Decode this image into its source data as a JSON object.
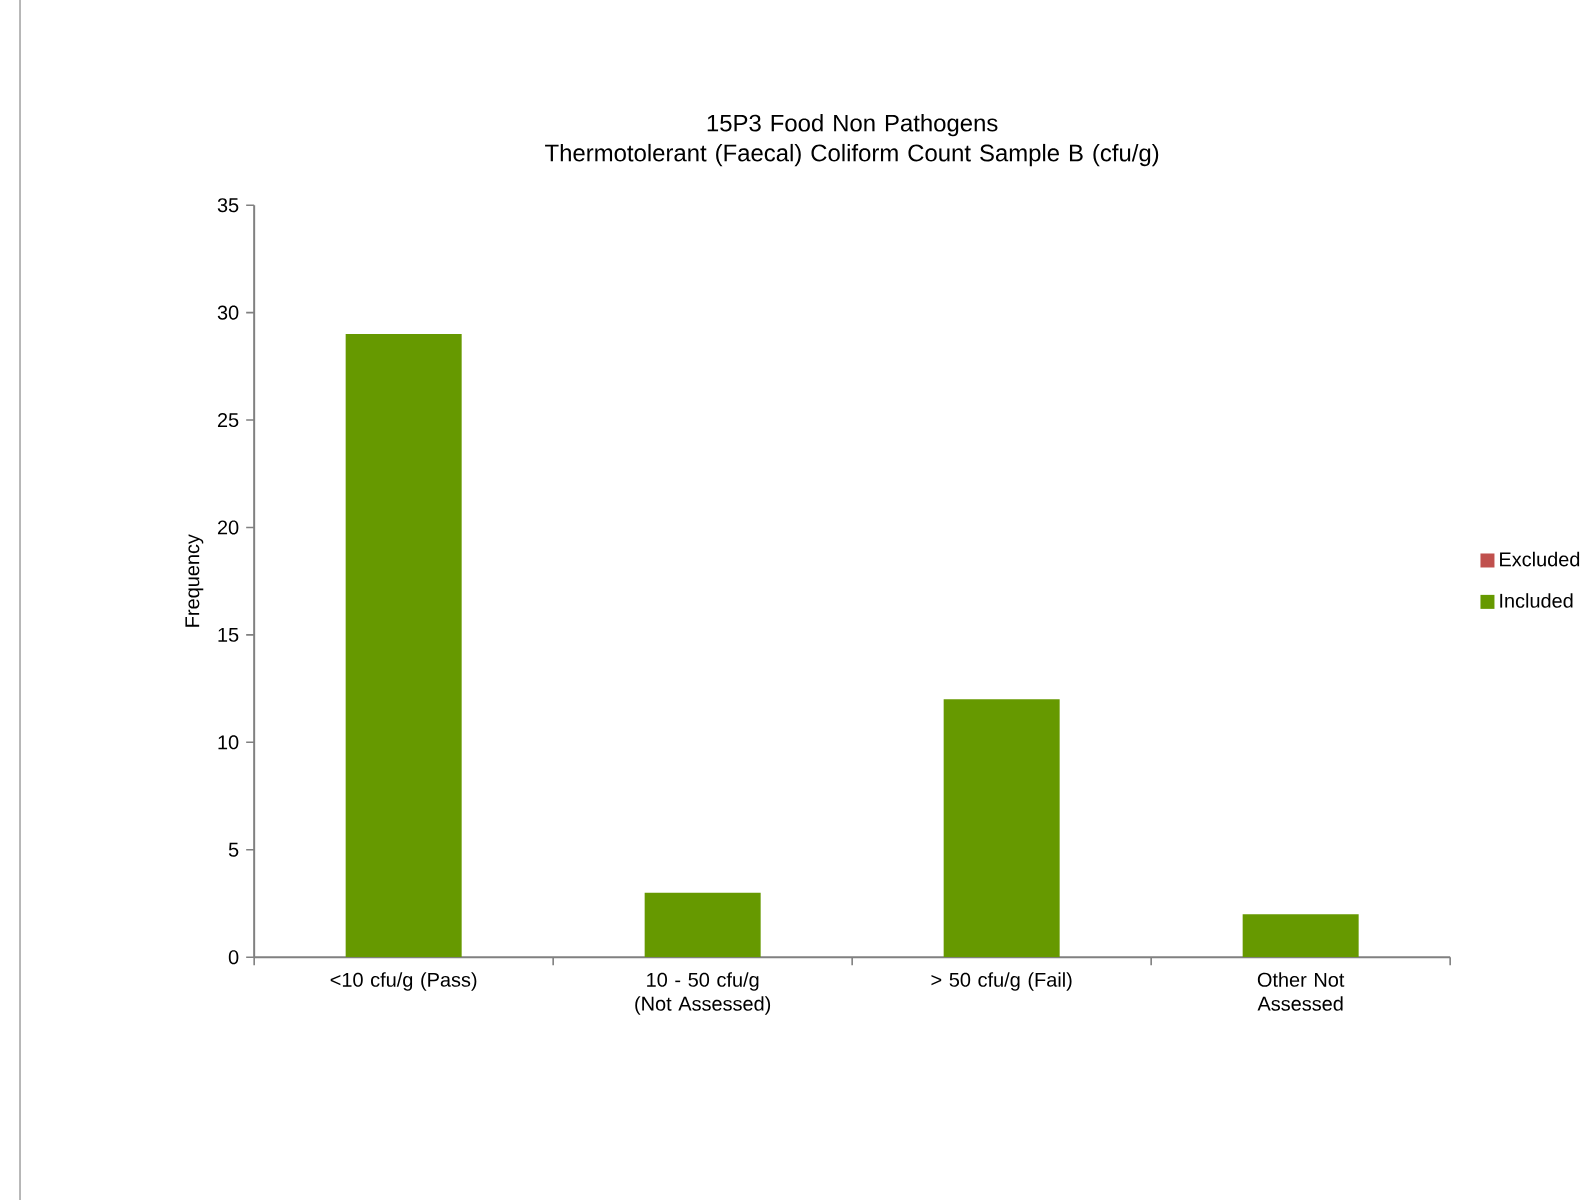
{
  "chart_data": {
    "type": "bar",
    "title": "15P3 Food Non Pathogens",
    "subtitle": "Thermotolerant (Faecal) Coliform Count Sample B (cfu/g)",
    "ylabel": "Frequency",
    "categories": [
      "<10 cfu/g (Pass)",
      "10 - 50 cfu/g (Not Assessed)",
      "> 50 cfu/g (Fail)",
      "Other Not Assessed"
    ],
    "series": [
      {
        "name": "Excluded",
        "color": "#c0504d",
        "values": [
          0,
          0,
          0,
          0
        ]
      },
      {
        "name": "Included",
        "color": "#669900",
        "values": [
          29,
          3,
          12,
          2
        ]
      }
    ],
    "stacked": true,
    "ylim": [
      0,
      35
    ],
    "yticks": [
      0,
      5,
      10,
      15,
      20,
      25,
      30,
      35
    ],
    "grid": false,
    "legend": "right"
  }
}
